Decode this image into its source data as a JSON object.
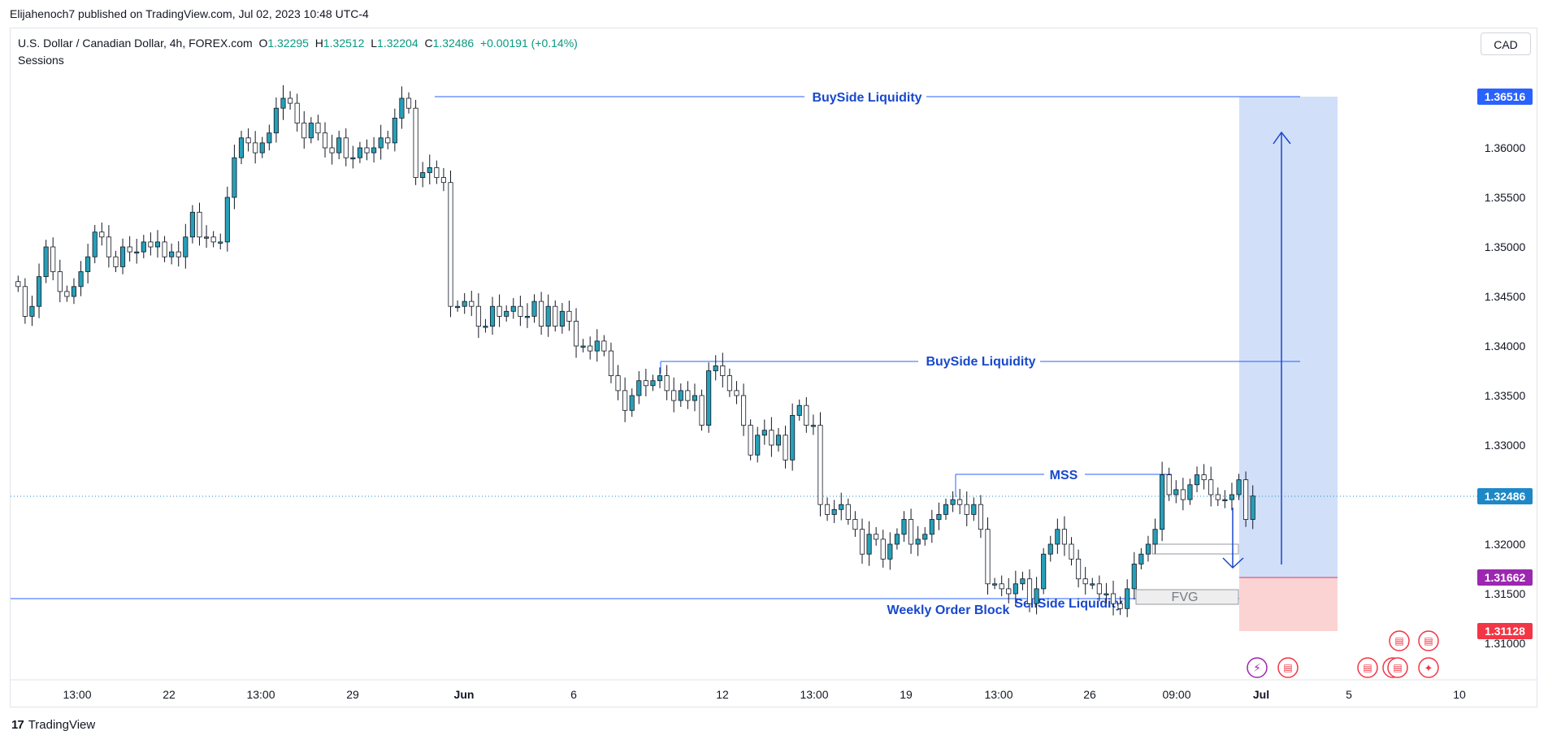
{
  "header": {
    "published_line": "Elijahenoch7 published on TradingView.com, Jul 02, 2023 10:48 UTC-4",
    "symbol": "U.S. Dollar / Canadian Dollar, 4h, FOREX.com",
    "open_label": "O",
    "open": "1.32295",
    "high_label": "H",
    "high": "1.32512",
    "low_label": "L",
    "low": "1.32204",
    "close_label": "C",
    "close": "1.32486",
    "change": "+0.00191 (+0.14%)",
    "indicator": "Sessions",
    "currency_button": "CAD"
  },
  "footer": {
    "brand": "TradingView",
    "logo_glyph": "17"
  },
  "colors": {
    "bull": "#26a0b8",
    "bear": "#ffffff",
    "wick": "#131722",
    "annotation": "#1848cc",
    "target_zone": "#c9d9f8",
    "stop_zone": "#fcd3d3",
    "price_tag": "#2962ff",
    "last_price_tag": "#1e88c7",
    "entry_tag": "#9c27b0",
    "stop_tag": "#f23645"
  },
  "chart_data": {
    "type": "candlestick",
    "instrument": "USDCAD",
    "timeframe": "4h",
    "y_range": [
      1.3075,
      1.37
    ],
    "y_ticks": [
      "1.36000",
      "1.35500",
      "1.35000",
      "1.34500",
      "1.34000",
      "1.33500",
      "1.33000",
      "1.32000",
      "1.31500",
      "1.31000"
    ],
    "x_ticks": [
      "13:00",
      "22",
      "13:00",
      "29",
      "Jun",
      "6",
      "12",
      "13:00",
      "19",
      "13:00",
      "26",
      "09:00",
      "Jul",
      "5",
      "10"
    ],
    "price_tags": {
      "target": "1.36516",
      "last": "1.32486",
      "entry": "1.31662",
      "stop": "1.31128"
    },
    "annotations": {
      "buyside_top": "BuySide Liquidity",
      "buyside_mid": "BuySide Liquidity",
      "mss": "MSS",
      "fvg": "FVG",
      "weekly_ob": "Weekly Order Block",
      "sellside": "SellSide Liquidity"
    },
    "levels": {
      "buyside_top": 1.36516,
      "buyside_mid": 1.3384,
      "mss": 1.327,
      "weekly_ob": 1.3145,
      "last": 1.32486
    },
    "path": [
      1.3465,
      1.346,
      1.343,
      1.344,
      1.347,
      1.35,
      1.3475,
      1.3455,
      1.345,
      1.346,
      1.3475,
      1.349,
      1.3515,
      1.351,
      1.349,
      1.348,
      1.35,
      1.3495,
      1.3495,
      1.3505,
      1.35,
      1.3505,
      1.349,
      1.3495,
      1.349,
      1.351,
      1.3535,
      1.351,
      1.351,
      1.3505,
      1.3505,
      1.355,
      1.359,
      1.361,
      1.3605,
      1.3595,
      1.3605,
      1.3615,
      1.364,
      1.365,
      1.3645,
      1.3625,
      1.361,
      1.3625,
      1.3615,
      1.36,
      1.3595,
      1.361,
      1.359,
      1.359,
      1.36,
      1.3595,
      1.36,
      1.361,
      1.3605,
      1.363,
      1.365,
      1.364,
      1.357,
      1.3575,
      1.358,
      1.357,
      1.3565,
      1.344,
      1.344,
      1.3445,
      1.344,
      1.342,
      1.342,
      1.344,
      1.343,
      1.3435,
      1.344,
      1.343,
      1.343,
      1.3445,
      1.342,
      1.344,
      1.342,
      1.3435,
      1.3425,
      1.34,
      1.34,
      1.3395,
      1.3405,
      1.3395,
      1.337,
      1.3355,
      1.3335,
      1.335,
      1.3365,
      1.336,
      1.3365,
      1.337,
      1.3355,
      1.3345,
      1.3355,
      1.3345,
      1.335,
      1.332,
      1.3375,
      1.338,
      1.337,
      1.3355,
      1.335,
      1.332,
      1.329,
      1.331,
      1.3315,
      1.33,
      1.331,
      1.3285,
      1.333,
      1.334,
      1.332,
      1.332,
      1.324,
      1.323,
      1.3235,
      1.324,
      1.3225,
      1.3215,
      1.319,
      1.321,
      1.3205,
      1.3185,
      1.32,
      1.321,
      1.3225,
      1.32,
      1.3205,
      1.321,
      1.3225,
      1.323,
      1.324,
      1.3245,
      1.324,
      1.323,
      1.324,
      1.3215,
      1.316,
      1.316,
      1.3155,
      1.315,
      1.316,
      1.3165,
      1.314,
      1.3155,
      1.319,
      1.32,
      1.3215,
      1.32,
      1.3185,
      1.3165,
      1.316,
      1.316,
      1.315,
      1.315,
      1.314,
      1.3135,
      1.3155,
      1.318,
      1.319,
      1.32,
      1.3215,
      1.327,
      1.325,
      1.3255,
      1.3245,
      1.326,
      1.327,
      1.3265,
      1.325,
      1.3245,
      1.3245,
      1.325,
      1.3265,
      1.3225,
      1.32486
    ]
  }
}
